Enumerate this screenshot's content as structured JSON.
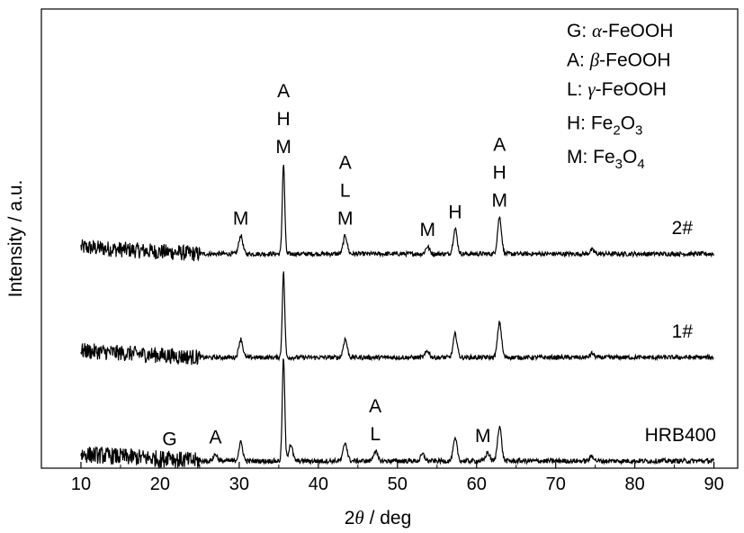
{
  "chart_data": {
    "type": "line",
    "xlabel_prefix": "2",
    "xlabel_symbol": "θ",
    "xlabel_suffix": " / deg",
    "ylabel": "Intensity / a.u.",
    "xlim": [
      5,
      93
    ],
    "xticks": [
      10,
      20,
      30,
      40,
      50,
      60,
      70,
      80,
      90
    ],
    "yticks_shown": false,
    "grid": false,
    "legend_position": "top-right",
    "legend": [
      {
        "prefix": "G: ",
        "greek": "α",
        "rest": "-FeOOH"
      },
      {
        "prefix": "A: ",
        "greek": "β",
        "rest": "-FeOOH"
      },
      {
        "prefix": "L: ",
        "greek": "γ",
        "rest": "-FeOOH"
      },
      {
        "prefix": "H: Fe",
        "sub1": "2",
        "mid": "O",
        "sub2": "3"
      },
      {
        "prefix": "M: Fe",
        "sub1": "3",
        "mid": "O",
        "sub2": "4"
      }
    ],
    "series": [
      {
        "name": "2#",
        "offset": 2.0,
        "baseline": 0.1,
        "noise": 0.15,
        "peaks": [
          {
            "x": 30.2,
            "h": 0.55
          },
          {
            "x": 35.6,
            "h": 2.7
          },
          {
            "x": 43.4,
            "h": 0.55
          },
          {
            "x": 53.8,
            "h": 0.22
          },
          {
            "x": 57.3,
            "h": 0.75
          },
          {
            "x": 62.9,
            "h": 1.1
          },
          {
            "x": 74.6,
            "h": 0.12
          }
        ],
        "annotations": [
          {
            "x": 30.2,
            "lines": [
              "M"
            ]
          },
          {
            "x": 35.6,
            "lines": [
              "A",
              "H",
              "M"
            ]
          },
          {
            "x": 43.4,
            "lines": [
              "A",
              "L",
              "M"
            ]
          },
          {
            "x": 53.8,
            "lines": [
              "M"
            ]
          },
          {
            "x": 57.3,
            "lines": [
              "H"
            ]
          },
          {
            "x": 62.9,
            "lines": [
              "A",
              "H",
              "M"
            ]
          }
        ]
      },
      {
        "name": "1#",
        "offset": 1.0,
        "baseline": 0.1,
        "noise": 0.15,
        "peaks": [
          {
            "x": 30.2,
            "h": 0.55
          },
          {
            "x": 35.6,
            "h": 2.55
          },
          {
            "x": 43.4,
            "h": 0.55
          },
          {
            "x": 53.8,
            "h": 0.2
          },
          {
            "x": 57.3,
            "h": 0.7
          },
          {
            "x": 62.9,
            "h": 1.05
          },
          {
            "x": 74.6,
            "h": 0.12
          }
        ],
        "annotations": []
      },
      {
        "name": "HRB400",
        "offset": 0.0,
        "baseline": 0.1,
        "noise": 0.16,
        "peaks": [
          {
            "x": 21.2,
            "h": 0.15
          },
          {
            "x": 27.0,
            "h": 0.2
          },
          {
            "x": 30.2,
            "h": 0.55
          },
          {
            "x": 35.6,
            "h": 3.1
          },
          {
            "x": 36.5,
            "h": 0.5
          },
          {
            "x": 43.4,
            "h": 0.55
          },
          {
            "x": 47.2,
            "h": 0.3
          },
          {
            "x": 53.2,
            "h": 0.2
          },
          {
            "x": 57.3,
            "h": 0.65
          },
          {
            "x": 61.4,
            "h": 0.25
          },
          {
            "x": 62.9,
            "h": 1.05
          },
          {
            "x": 74.6,
            "h": 0.15
          }
        ],
        "annotations": [
          {
            "x": 21.2,
            "lines": [
              "G"
            ]
          },
          {
            "x": 27.0,
            "lines": [
              "A"
            ]
          },
          {
            "x": 47.2,
            "lines": [
              "A",
              "L"
            ]
          },
          {
            "x": 60.8,
            "lines": [
              "M"
            ]
          }
        ]
      }
    ]
  }
}
